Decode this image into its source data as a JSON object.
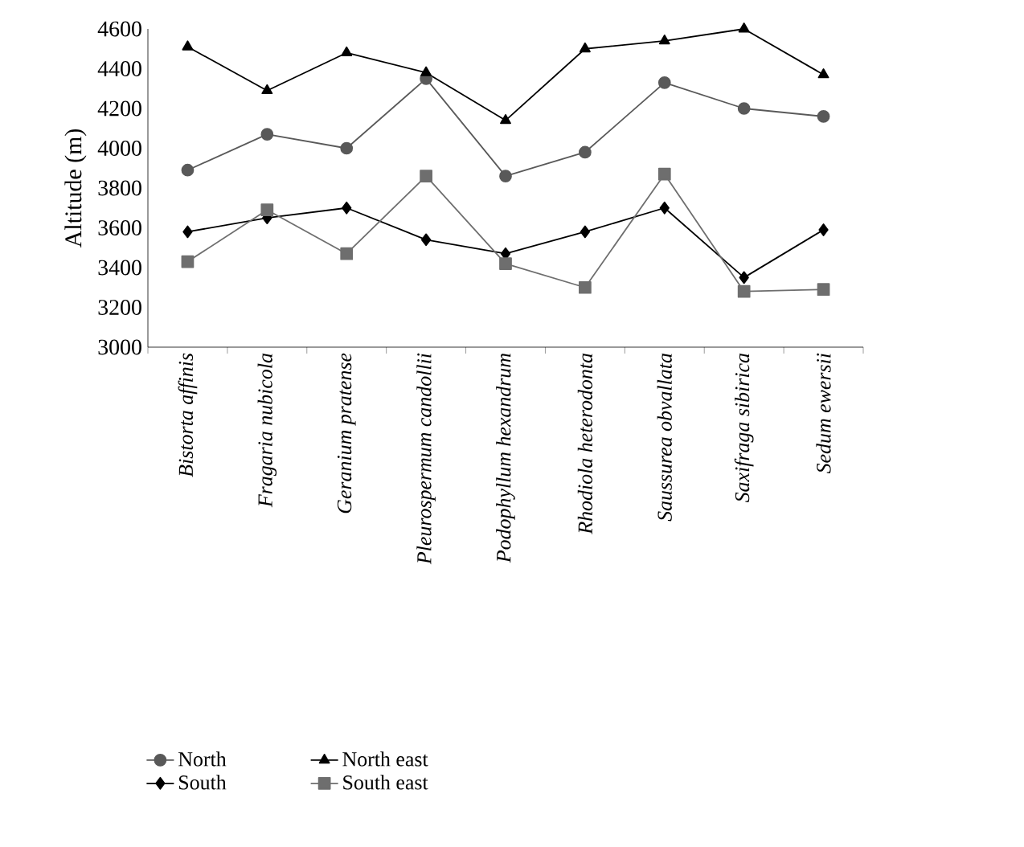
{
  "chart_data": {
    "type": "line",
    "ylabel": "Altitude (m)",
    "categories": [
      "*Bistorta affinis*",
      "*Fragaria nubicola*",
      "*Geranium pratense*",
      "*Pleurospermum candollii*",
      "*Podophyllum hexandrum*",
      "*Rhodiola heterodonta*",
      "*Saussurea obvallata*",
      "*Saxifraga sibirica*",
      "*Sedum ewersii*"
    ],
    "series": [
      {
        "name": "North",
        "color": "#595959",
        "marker": "circle",
        "values": [
          3890,
          4070,
          4000,
          4350,
          3860,
          3980,
          4330,
          4200,
          4160
        ]
      },
      {
        "name": "North east",
        "color": "#000000",
        "marker": "triangle",
        "values": [
          4510,
          4290,
          4480,
          4380,
          4140,
          4500,
          4540,
          4600,
          4370
        ]
      },
      {
        "name": "South",
        "color": "#000000",
        "marker": "diamond",
        "values": [
          3580,
          3650,
          3700,
          3540,
          3470,
          3580,
          3700,
          3350,
          3590
        ]
      },
      {
        "name": "South east",
        "color": "#6e6e6e",
        "marker": "square",
        "values": [
          3430,
          3690,
          3470,
          3860,
          3420,
          3300,
          3870,
          3280,
          3290
        ]
      }
    ],
    "ylim": [
      3000,
      4600
    ],
    "yticks": [
      3000,
      3200,
      3400,
      3600,
      3800,
      4000,
      4200,
      4400,
      4600
    ],
    "grid": false,
    "legend": "bottom",
    "line_style": "solid"
  }
}
